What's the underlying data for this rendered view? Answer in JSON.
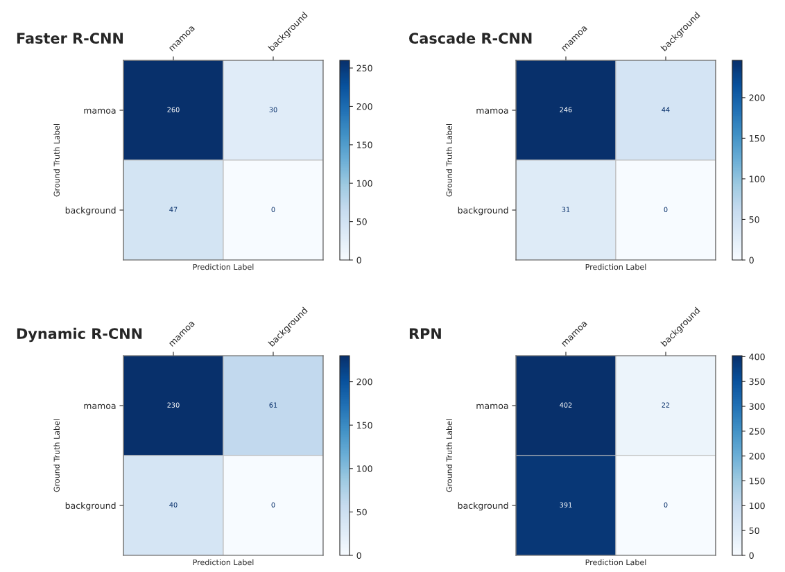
{
  "chart_data": [
    {
      "type": "heatmap",
      "title": "Faster R-CNN",
      "xlabel": "Prediction Label",
      "ylabel": "Ground Truth Label",
      "categories": [
        "mamoa",
        "background"
      ],
      "y_categories": [
        "mamoa",
        "background"
      ],
      "cells": [
        [
          260,
          30
        ],
        [
          47,
          0
        ]
      ],
      "data_labels": true,
      "clim": [
        0,
        260
      ],
      "cticks": [
        0,
        50,
        100,
        150,
        200,
        250
      ]
    },
    {
      "type": "heatmap",
      "title": "Cascade R-CNN",
      "xlabel": "Prediction Label",
      "ylabel": "Ground Truth Label",
      "categories": [
        "mamoa",
        "background"
      ],
      "y_categories": [
        "mamoa",
        "background"
      ],
      "cells": [
        [
          246,
          44
        ],
        [
          31,
          0
        ]
      ],
      "data_labels": true,
      "clim": [
        0,
        246
      ],
      "cticks": [
        0,
        50,
        100,
        150,
        200
      ]
    },
    {
      "type": "heatmap",
      "title": "Dynamic R-CNN",
      "xlabel": "Prediction Label",
      "ylabel": "Ground Truth Label",
      "categories": [
        "mamoa",
        "background"
      ],
      "y_categories": [
        "mamoa",
        "background"
      ],
      "cells": [
        [
          230,
          61
        ],
        [
          40,
          0
        ]
      ],
      "data_labels": true,
      "clim": [
        0,
        230
      ],
      "cticks": [
        0,
        50,
        100,
        150,
        200
      ]
    },
    {
      "type": "heatmap",
      "title": "RPN",
      "xlabel": "Prediction Label",
      "ylabel": "Ground Truth Label",
      "categories": [
        "mamoa",
        "background"
      ],
      "y_categories": [
        "mamoa",
        "background"
      ],
      "cells": [
        [
          402,
          22
        ],
        [
          391,
          0
        ]
      ],
      "data_labels": true,
      "clim": [
        0,
        402
      ],
      "cticks": [
        0,
        50,
        100,
        150,
        200,
        250,
        300,
        350,
        400
      ]
    }
  ]
}
